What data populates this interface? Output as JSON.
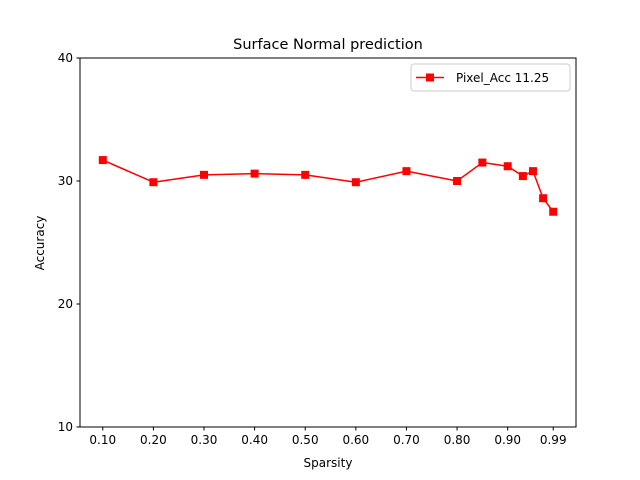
{
  "chart_data": {
    "type": "line",
    "title": "Surface Normal prediction",
    "xlabel": "Sparsity",
    "ylabel": "Accuracy",
    "xticks": [
      "0.10",
      "0.20",
      "0.30",
      "0.40",
      "0.50",
      "0.60",
      "0.70",
      "0.80",
      "0.90",
      "0.99"
    ],
    "yticks": [
      "10",
      "20",
      "30",
      "40"
    ],
    "ylim": [
      10,
      40
    ],
    "xlim": [
      0.055,
      1.035
    ],
    "grid": false,
    "legend_position": "upper-right",
    "series": [
      {
        "name": "Pixel_Acc 11.25",
        "color": "#ff0000",
        "marker": "square",
        "x": [
          0.1,
          0.2,
          0.3,
          0.4,
          0.5,
          0.6,
          0.7,
          0.8,
          0.85,
          0.9,
          0.93,
          0.95,
          0.97,
          0.99
        ],
        "y": [
          31.7,
          29.9,
          30.5,
          30.6,
          30.5,
          29.9,
          30.8,
          30.0,
          31.5,
          31.2,
          30.4,
          30.8,
          28.6,
          27.5
        ]
      }
    ]
  }
}
